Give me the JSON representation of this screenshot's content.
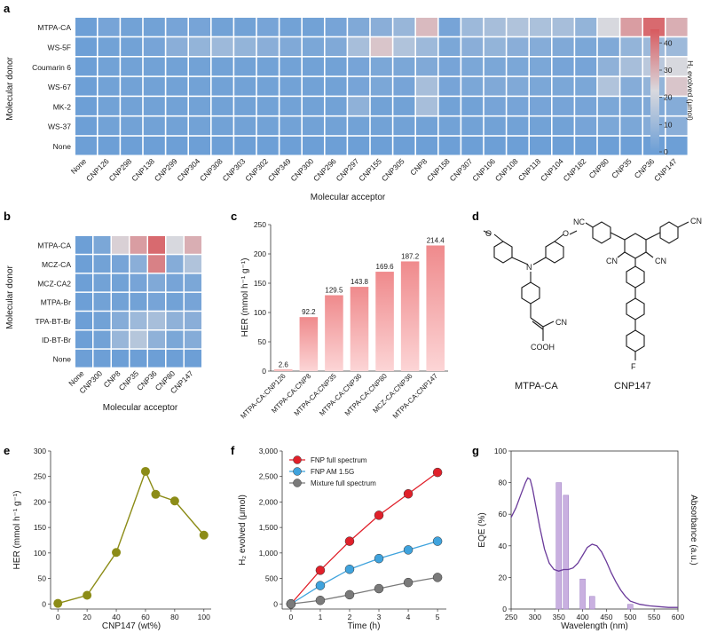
{
  "panels": {
    "a": "a",
    "b": "b",
    "c": "c",
    "d": "d",
    "e": "e",
    "f": "f",
    "g": "g"
  },
  "colors": {
    "low": "#6d9fd6",
    "mid": "#d9d9de",
    "high": "#d8595e",
    "bar_top": "#ef8a8c",
    "bar_bottom": "#fbd2d3",
    "olive": "#8c8c17",
    "red": "#e0202a",
    "blue": "#3fa3dd",
    "gray": "#7a7a7a",
    "purple": "#6a3a9a",
    "lavender": "#c9b0e0"
  },
  "chart_data": [
    {
      "type": "heatmap",
      "panel": "a",
      "ylabel": "Molecular donor",
      "xlabel": "Molecular acceptor",
      "rows": [
        "MTPA-CA",
        "WS-5F",
        "Coumarin 6",
        "WS-67",
        "MK-2",
        "WS-37",
        "None"
      ],
      "cols": [
        "None",
        "CNP126",
        "CNP298",
        "CNP138",
        "CNP299",
        "CNP304",
        "CNP308",
        "CNP303",
        "CNP302",
        "CNP349",
        "CNP300",
        "CNP296",
        "CNP297",
        "CNP155",
        "CNP305",
        "CNP8",
        "CNP158",
        "CNP307",
        "CNP106",
        "CNP108",
        "CNP118",
        "CNP104",
        "CNP182",
        "CNP80",
        "CNP35",
        "CNP36",
        "CNP147"
      ],
      "values": [
        [
          0,
          2,
          1,
          1,
          2,
          2,
          1,
          1,
          2,
          1,
          1,
          2,
          4,
          6,
          9,
          28,
          2,
          10,
          12,
          14,
          13,
          12,
          8,
          22,
          33,
          42,
          30
        ],
        [
          0,
          1,
          1,
          2,
          6,
          8,
          10,
          8,
          6,
          4,
          3,
          4,
          12,
          26,
          14,
          10,
          3,
          6,
          8,
          6,
          5,
          4,
          3,
          4,
          8,
          10,
          10
        ],
        [
          0,
          1,
          1,
          1,
          1,
          1,
          1,
          1,
          1,
          1,
          1,
          1,
          2,
          3,
          3,
          4,
          2,
          3,
          3,
          3,
          3,
          2,
          2,
          7,
          12,
          16,
          22
        ],
        [
          0,
          1,
          1,
          1,
          1,
          1,
          1,
          1,
          1,
          1,
          1,
          1,
          2,
          3,
          2,
          12,
          2,
          3,
          4,
          4,
          3,
          3,
          3,
          14,
          5,
          8,
          26
        ],
        [
          0,
          1,
          1,
          1,
          1,
          1,
          1,
          1,
          1,
          1,
          1,
          1,
          7,
          1,
          1,
          12,
          1,
          1,
          2,
          2,
          2,
          2,
          2,
          3,
          3,
          4,
          5
        ],
        [
          0,
          1,
          1,
          1,
          1,
          1,
          1,
          1,
          1,
          1,
          1,
          1,
          1,
          1,
          1,
          1,
          1,
          1,
          1,
          1,
          1,
          1,
          2,
          3,
          3,
          5,
          6
        ],
        [
          0,
          0,
          0,
          0,
          0,
          0,
          0,
          0,
          0,
          0,
          0,
          0,
          0,
          0,
          0,
          0,
          0,
          0,
          0,
          0,
          0,
          0,
          0,
          0,
          0,
          0,
          0
        ]
      ],
      "colorbar": {
        "label": "H₂ evolved (μmol)",
        "range": [
          0,
          45
        ],
        "ticks": [
          "0",
          "10",
          "20",
          "30",
          "40"
        ]
      }
    },
    {
      "type": "heatmap",
      "panel": "b",
      "ylabel": "Molecular donor",
      "xlabel": "Molecular acceptor",
      "rows": [
        "MTPA-CA",
        "MCZ-CA",
        "MCZ-CA2",
        "MTPA-Br",
        "TPA-BT-Br",
        "ID-BT-Br",
        "None"
      ],
      "cols": [
        "None",
        "CNP300",
        "CNP8",
        "CNP35",
        "CNP36",
        "CNP80",
        "CNP147"
      ],
      "values": [
        [
          0,
          3,
          24,
          33,
          42,
          22,
          30
        ],
        [
          0,
          1,
          2,
          6,
          38,
          5,
          14
        ],
        [
          0,
          1,
          1,
          2,
          4,
          2,
          3
        ],
        [
          0,
          1,
          1,
          1,
          2,
          1,
          2
        ],
        [
          0,
          1,
          5,
          10,
          12,
          7,
          6
        ],
        [
          0,
          1,
          9,
          15,
          7,
          3,
          5
        ],
        [
          0,
          0,
          0,
          0,
          0,
          0,
          0
        ]
      ]
    },
    {
      "type": "bar",
      "panel": "c",
      "ylabel": "HER (mmol h⁻¹ g⁻¹)",
      "ylim": [
        0,
        250
      ],
      "yticks": [
        "0",
        "50",
        "100",
        "150",
        "200",
        "250"
      ],
      "categories": [
        "MTPA-CA:CNP126",
        "MTPA-CA:CNP8",
        "MTPA-CA:CNP35",
        "MTPA-CA:CNP36",
        "MTPA-CA:CNP80",
        "MCZ-CA:CNP36",
        "MTPA-CA:CNP147"
      ],
      "values": [
        2.6,
        92.2,
        129.5,
        143.8,
        169.6,
        187.2,
        214.4
      ],
      "labels": [
        "2.6",
        "92.2",
        "129.5",
        "143.8",
        "169.6",
        "187.2",
        "214.4"
      ]
    },
    {
      "type": "line",
      "panel": "e",
      "xlabel": "CNP147 (wt%)",
      "ylabel": "HER (mmol h⁻¹ g⁻¹)",
      "xlim": [
        -5,
        105
      ],
      "ylim": [
        -10,
        300
      ],
      "xticks": [
        "0",
        "20",
        "40",
        "60",
        "80",
        "100"
      ],
      "yticks": [
        "0",
        "50",
        "100",
        "150",
        "200",
        "250",
        "300"
      ],
      "x": [
        0,
        20,
        40,
        60,
        67,
        80,
        100
      ],
      "y": [
        1,
        17,
        101,
        260,
        215,
        202,
        135
      ]
    },
    {
      "type": "line",
      "panel": "f",
      "xlabel": "Time (h)",
      "ylabel": "H₂ evolved (μmol)",
      "xlim": [
        -0.3,
        5.3
      ],
      "ylim": [
        -100,
        3000
      ],
      "xticks": [
        "0",
        "1",
        "2",
        "3",
        "4",
        "5"
      ],
      "yticks": [
        "0",
        "500",
        "1,000",
        "1,500",
        "2,000",
        "2,500",
        "3,000"
      ],
      "legend": "top-left",
      "x": [
        0,
        1,
        2,
        3,
        4,
        5
      ],
      "series": [
        {
          "name": "FNP full spectrum",
          "values": [
            0,
            660,
            1230,
            1740,
            2160,
            2580
          ]
        },
        {
          "name": "FNP AM 1.5G",
          "values": [
            0,
            360,
            680,
            890,
            1060,
            1230
          ]
        },
        {
          "name": "Mixture full spectrum",
          "values": [
            0,
            70,
            180,
            300,
            420,
            520
          ]
        }
      ]
    },
    {
      "type": "bar",
      "panel": "g",
      "xlabel": "Wavelength (nm)",
      "ylabel": "EQE (%)",
      "ylabel_right": "Absorbance (a.u.)",
      "xlim": [
        250,
        600
      ],
      "ylim": [
        0,
        100
      ],
      "xticks": [
        "250",
        "300",
        "350",
        "400",
        "450",
        "500",
        "550",
        "600"
      ],
      "yticks": [
        "0",
        "20",
        "40",
        "60",
        "80",
        "100"
      ],
      "bar_x": [
        350,
        365,
        400,
        420,
        500
      ],
      "bar_values": [
        80,
        72,
        19,
        8,
        3
      ],
      "absorbance_curve": {
        "x": [
          250,
          260,
          270,
          280,
          285,
          290,
          295,
          300,
          310,
          320,
          330,
          340,
          350,
          360,
          370,
          380,
          390,
          400,
          410,
          420,
          430,
          440,
          450,
          460,
          470,
          480,
          490,
          500,
          520,
          540,
          560,
          580,
          600
        ],
        "y": [
          58,
          64,
          72,
          80,
          83,
          82,
          76,
          68,
          52,
          38,
          29,
          25,
          24,
          25,
          25,
          26,
          29,
          34,
          39,
          41,
          40,
          36,
          30,
          23,
          17,
          12,
          8,
          5,
          3,
          2,
          1.5,
          1,
          1
        ]
      }
    }
  ],
  "structures": {
    "left_name": "MTPA-CA",
    "right_name": "CNP147",
    "atoms": {
      "n": "N",
      "o": "O",
      "cn": "CN",
      "cooh": "COOH",
      "f": "F",
      "nc": "NC"
    }
  }
}
